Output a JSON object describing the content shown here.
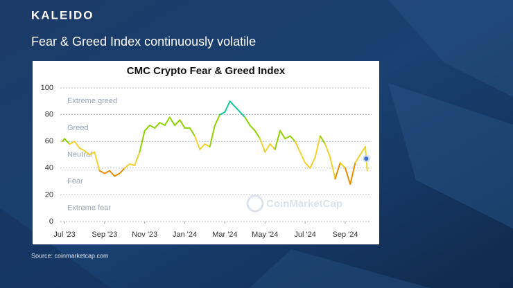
{
  "brand": "KALEIDO",
  "headline": "Fear & Greed Index continuously volatile",
  "source": "Source: coinmarketcap.com",
  "chart_data": {
    "type": "line",
    "title": "CMC Crypto Fear & Greed Index",
    "watermark": "CoinMarketCap",
    "x": [
      -0.1,
      0,
      0.25,
      0.5,
      0.75,
      1,
      1.25,
      1.5,
      1.75,
      2,
      2.25,
      2.5,
      2.75,
      3,
      3.25,
      3.5,
      3.75,
      4,
      4.25,
      4.5,
      4.75,
      5,
      5.25,
      5.5,
      5.75,
      6,
      6.25,
      6.5,
      6.75,
      7,
      7.25,
      7.5,
      7.75,
      8,
      8.25,
      8.5,
      8.75,
      9,
      9.25,
      9.5,
      9.75,
      10,
      10.25,
      10.5,
      10.75,
      11,
      11.25,
      11.5,
      11.75,
      12,
      12.25,
      12.5,
      12.75,
      13,
      13.25,
      13.5,
      13.75,
      14,
      14.25,
      14.5,
      14.75,
      15,
      15.1
    ],
    "values": [
      60,
      62,
      58,
      60,
      55,
      53,
      50,
      52,
      38,
      36,
      38,
      34,
      36,
      40,
      43,
      42,
      52,
      68,
      72,
      70,
      74,
      72,
      78,
      72,
      76,
      70,
      70,
      64,
      54,
      58,
      56,
      72,
      80,
      82,
      90,
      86,
      82,
      78,
      72,
      68,
      62,
      52,
      58,
      54,
      68,
      62,
      64,
      60,
      52,
      44,
      40,
      48,
      64,
      58,
      48,
      32,
      44,
      40,
      28,
      44,
      50,
      56,
      38
    ],
    "highlight": {
      "x": 15.05,
      "value": 47,
      "color": "#3d6fc4"
    },
    "zones": [
      {
        "label": "Extreme greed",
        "from": 80,
        "to": 100,
        "color": "#16c79a"
      },
      {
        "label": "Greed",
        "from": 60,
        "to": 80,
        "color": "#8fd400"
      },
      {
        "label": "Neutral",
        "from": 40,
        "to": 60,
        "color": "#f2d22e"
      },
      {
        "label": "Fear",
        "from": 20,
        "to": 40,
        "color": "#ea8c00"
      },
      {
        "label": "Extreme fear",
        "from": 0,
        "to": 20,
        "color": "#ea3943"
      }
    ],
    "xlim": [
      -0.2,
      15.3
    ],
    "xticks": [
      {
        "value": 0,
        "label": "Jul '23"
      },
      {
        "value": 2,
        "label": "Sep '23"
      },
      {
        "value": 4,
        "label": "Nov '23"
      },
      {
        "value": 6,
        "label": "Jan '24"
      },
      {
        "value": 8,
        "label": "Mar '24"
      },
      {
        "value": 10,
        "label": "May '24"
      },
      {
        "value": 12,
        "label": "Jul '24"
      },
      {
        "value": 14,
        "label": "Sep '24"
      }
    ],
    "ylim": [
      0,
      100
    ],
    "yticks": [
      0,
      20,
      40,
      60,
      80,
      100
    ],
    "grid": true
  }
}
